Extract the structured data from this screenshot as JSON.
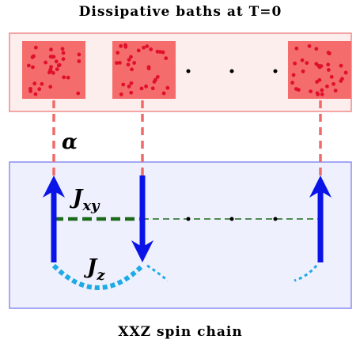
{
  "title": "Dissipative baths at T=0",
  "coupling": "α",
  "hopping": {
    "symbol": "J",
    "subscript": "xy"
  },
  "anisotropy": {
    "symbol": "J",
    "subscript": "z"
  },
  "caption": "XXZ spin chain"
}
